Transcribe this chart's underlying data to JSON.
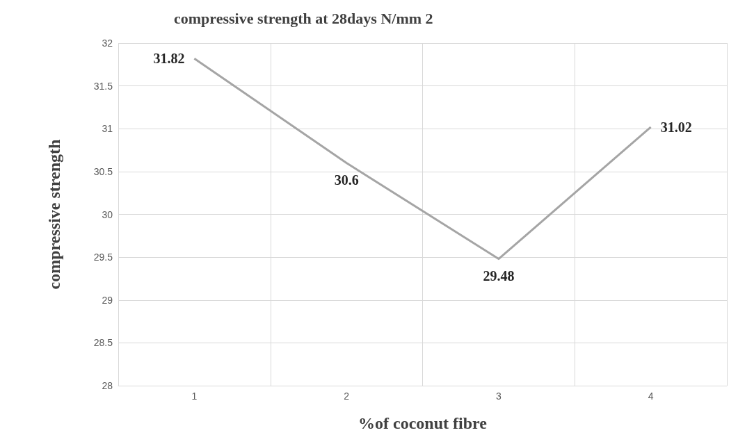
{
  "chart_data": {
    "type": "line",
    "title": "compressive strength at 28days N/mm 2",
    "xlabel": "%of coconut fibre",
    "ylabel": "compressive strength",
    "categories": [
      "1",
      "2",
      "3",
      "4"
    ],
    "series": [
      {
        "color": "#a5a5a5",
        "values": [
          31.82,
          30.6,
          29.48,
          31.02
        ]
      }
    ],
    "ylim": [
      28,
      32
    ],
    "yticks": [
      28,
      28.5,
      29,
      29.5,
      30,
      30.5,
      31,
      31.5,
      32
    ],
    "grid": true,
    "data_labels": true,
    "marker": "none",
    "line_style": "solid"
  }
}
